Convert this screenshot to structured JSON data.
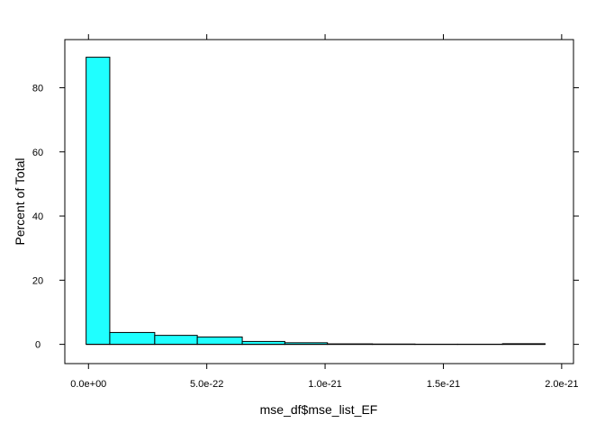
{
  "chart_data": {
    "type": "bar",
    "subtype": "histogram",
    "title": "",
    "xlabel": "mse_df$mse_list_EF",
    "ylabel": "Percent of Total",
    "xlim": [
      -1e-22,
      2.05e-21
    ],
    "ylim": [
      -6,
      95
    ],
    "x_ticks": [
      0,
      5e-22,
      1e-21,
      1.5e-21,
      2e-21
    ],
    "x_tick_labels": [
      "0.0e+00",
      "5.0e-22",
      "1.0e-21",
      "1.5e-21",
      "2.0e-21"
    ],
    "y_ticks": [
      0,
      20,
      40,
      60,
      80
    ],
    "y_tick_labels": [
      "0",
      "20",
      "40",
      "60",
      "80"
    ],
    "bin_edges": [
      -1e-23,
      9e-23,
      2.8e-22,
      4.6e-22,
      6.5e-22,
      8.3e-22,
      1.01e-21,
      1.2e-21,
      1.38e-21,
      1.56e-21,
      1.75e-21,
      1.93e-21
    ],
    "values": [
      89.5,
      3.7,
      2.8,
      2.3,
      0.9,
      0.5,
      0.15,
      0.1,
      0.05,
      0.05,
      0.2
    ],
    "bar_color": "#1fffff",
    "bar_outline": "#000000",
    "grid": false,
    "legend": "none"
  }
}
